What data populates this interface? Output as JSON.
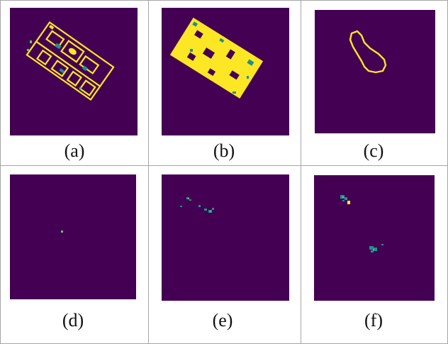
{
  "colors": {
    "background": "#440154",
    "foreground": "#fde725",
    "mid": "#21918c",
    "light": "#5ec962"
  },
  "panels": [
    {
      "id": "a",
      "caption": "(a)",
      "content": "building-outline-thin"
    },
    {
      "id": "b",
      "caption": "(b)",
      "content": "building-filled"
    },
    {
      "id": "c",
      "caption": "(c)",
      "content": "closed-contour"
    },
    {
      "id": "d",
      "caption": "(d)",
      "content": "single-dot"
    },
    {
      "id": "e",
      "caption": "(e)",
      "content": "small-clusters"
    },
    {
      "id": "f",
      "caption": "(f)",
      "content": "two-clusters"
    }
  ]
}
